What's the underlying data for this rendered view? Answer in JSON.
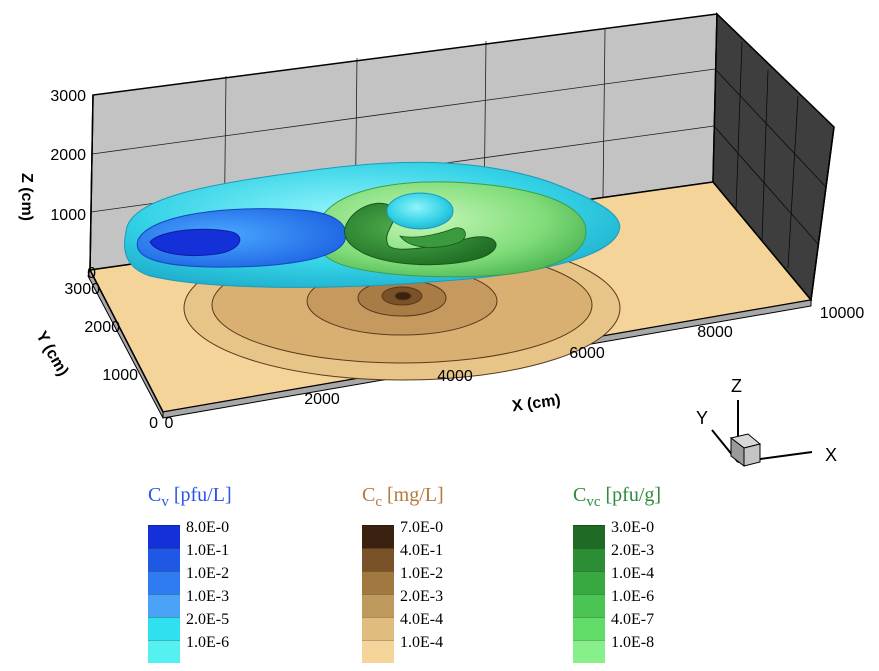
{
  "axes": {
    "x": {
      "title": "X (cm)",
      "ticks": [
        "0",
        "2000",
        "4000",
        "6000",
        "8000",
        "10000"
      ]
    },
    "y": {
      "title": "Y (cm)",
      "ticks": [
        "0",
        "1000",
        "2000",
        "3000"
      ]
    },
    "z": {
      "title": "Z (cm)",
      "ticks": [
        "0",
        "1000",
        "2000",
        "3000"
      ]
    }
  },
  "triad": {
    "x": "X",
    "y": "Y",
    "z": "Z"
  },
  "legends": [
    {
      "symbol": "C",
      "sub": "v",
      "unit": "[pfu/L]",
      "title_color": "#2a55e8",
      "levels": [
        "8.0E-0",
        "1.0E-1",
        "1.0E-2",
        "1.0E-3",
        "2.0E-5",
        "1.0E-6"
      ],
      "colors": [
        "#1430d8",
        "#2058e6",
        "#2f7cf0",
        "#4aa2f6",
        "#2fe0ee",
        "#55f0f2"
      ]
    },
    {
      "symbol": "C",
      "sub": "c",
      "unit": "[mg/L]",
      "title_color": "#b7783c",
      "levels": [
        "7.0E-0",
        "4.0E-1",
        "1.0E-2",
        "2.0E-3",
        "4.0E-4",
        "1.0E-4"
      ],
      "colors": [
        "#3b2210",
        "#7a5228",
        "#a07840",
        "#c09a5c",
        "#e0bc7e",
        "#f5d49a"
      ]
    },
    {
      "symbol": "C",
      "sub": "vc",
      "unit": "[pfu/g]",
      "title_color": "#2f8a3a",
      "levels": [
        "3.0E-0",
        "2.0E-3",
        "1.0E-4",
        "1.0E-6",
        "4.0E-7",
        "1.0E-8"
      ],
      "colors": [
        "#1f6b26",
        "#2c8d34",
        "#38a841",
        "#4ac452",
        "#62dc68",
        "#88f08a"
      ]
    }
  ]
}
